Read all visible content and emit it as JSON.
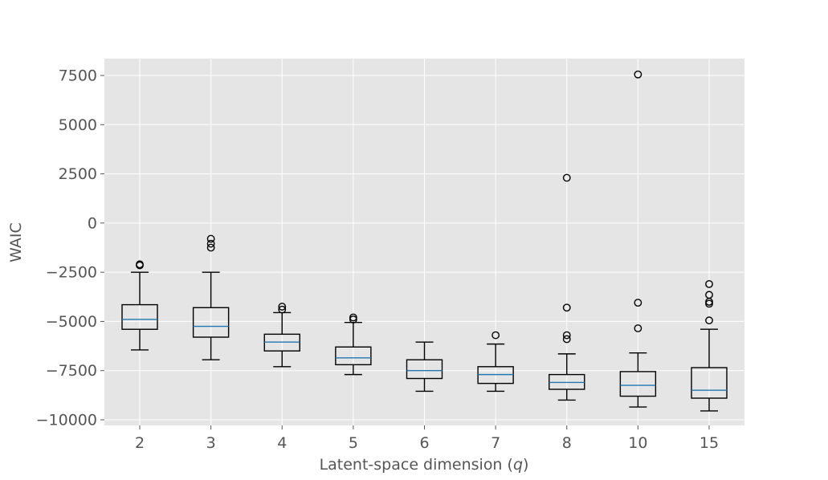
{
  "chart_data": {
    "type": "box",
    "title": "",
    "xlabel": "Latent-space dimension (q)",
    "xlabel_parts": [
      "Latent-space dimension (",
      "q",
      ")"
    ],
    "ylabel": "WAIC",
    "ylim": [
      -10250,
      7500
    ],
    "yticks": [
      -10000,
      -7500,
      -5000,
      -2500,
      0,
      2500,
      5000,
      7500
    ],
    "ytick_labels": [
      "−10000",
      "−7500",
      "−5000",
      "−2500",
      "0",
      "2500",
      "5000",
      "7500"
    ],
    "grid": true,
    "style": "ggplot",
    "colors": {
      "background": "#e5e5e5",
      "grid": "#ffffff",
      "box": "#000000",
      "median": "#1f77b4"
    },
    "categories": [
      "2",
      "3",
      "4",
      "5",
      "6",
      "7",
      "8",
      "10",
      "15"
    ],
    "boxes": [
      {
        "label": "2",
        "whislo": -6450,
        "q1": -5400,
        "median": -4900,
        "q3": -4150,
        "whishi": -2500,
        "fliers": [
          -2100,
          -2150
        ]
      },
      {
        "label": "3",
        "whislo": -6950,
        "q1": -5800,
        "median": -5250,
        "q3": -4300,
        "whishi": -2500,
        "fliers": [
          -800,
          -1050,
          -1250
        ]
      },
      {
        "label": "4",
        "whislo": -7300,
        "q1": -6500,
        "median": -6050,
        "q3": -5650,
        "whishi": -4550,
        "fliers": [
          -4250,
          -4400
        ]
      },
      {
        "label": "5",
        "whislo": -7700,
        "q1": -7200,
        "median": -6850,
        "q3": -6300,
        "whishi": -5050,
        "fliers": [
          -4800,
          -4900
        ]
      },
      {
        "label": "6",
        "whislo": -8550,
        "q1": -7900,
        "median": -7500,
        "q3": -6950,
        "whishi": -6050,
        "fliers": []
      },
      {
        "label": "7",
        "whislo": -8550,
        "q1": -8150,
        "median": -7700,
        "q3": -7300,
        "whishi": -6150,
        "fliers": [
          -5700
        ]
      },
      {
        "label": "8",
        "whislo": -9000,
        "q1": -8450,
        "median": -8100,
        "q3": -7700,
        "whishi": -6650,
        "fliers": [
          2300,
          -4300,
          -5700,
          -5900
        ]
      },
      {
        "label": "10",
        "whislo": -9350,
        "q1": -8800,
        "median": -8250,
        "q3": -7550,
        "whishi": -6600,
        "fliers": [
          7550,
          -4050,
          -5350
        ]
      },
      {
        "label": "15",
        "whislo": -9550,
        "q1": -8900,
        "median": -8500,
        "q3": -7350,
        "whishi": -5400,
        "fliers": [
          -3100,
          -3650,
          -4000,
          -4100,
          -4950
        ]
      }
    ]
  }
}
